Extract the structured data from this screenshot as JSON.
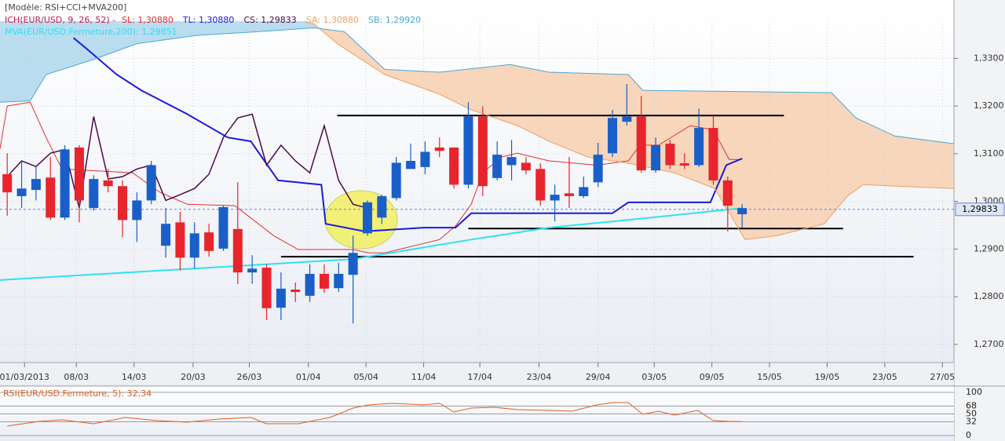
{
  "chart_data": [
    {
      "type": "candlestick",
      "title": "[Modèle: RSI+CCI+MVA200]",
      "indicator": "ICH(EUR/USD, 9, 26, 52) -",
      "up_color": "#1a5fc8",
      "down_color": "#e8242c",
      "x": [
        0,
        1,
        2,
        3,
        4,
        5,
        6,
        7,
        8,
        9,
        10,
        11,
        12,
        13,
        14,
        15,
        16,
        17,
        18,
        19,
        20,
        21,
        22,
        23,
        24,
        25,
        26,
        27,
        28,
        29,
        30,
        31,
        32,
        33,
        34,
        35,
        36,
        37,
        38,
        39,
        40,
        41,
        42,
        43,
        44,
        45,
        46,
        47,
        48,
        49,
        50,
        51
      ],
      "open": [
        1.3057,
        1.3011,
        1.3024,
        1.305,
        1.2966,
        1.3113,
        1.2986,
        1.3044,
        1.3032,
        1.2961,
        1.3002,
        1.2907,
        1.2956,
        1.2882,
        1.2935,
        1.2901,
        1.2942,
        1.2851,
        1.2861,
        1.2777,
        1.2815,
        1.2802,
        1.2848,
        1.2818,
        1.2846,
        1.2933,
        1.2966,
        1.3007,
        1.3068,
        1.3072,
        1.3113,
        1.3113,
        1.3035,
        1.3178,
        1.3049,
        1.3076,
        1.3081,
        1.3068,
        1.3002,
        1.3017,
        1.3011,
        1.304,
        1.3101,
        1.3167,
        1.3178,
        1.3065,
        1.3121,
        1.308,
        1.3076,
        1.3154,
        1.3044,
        1.2973
      ],
      "high": [
        1.3101,
        1.3085,
        1.3073,
        1.3093,
        1.3118,
        1.3118,
        1.3055,
        1.3068,
        1.3044,
        1.3019,
        1.3085,
        1.2986,
        1.2978,
        1.2956,
        1.2953,
        1.2991,
        1.304,
        1.2887,
        1.2868,
        1.2851,
        1.283,
        1.2868,
        1.2868,
        1.2871,
        1.2928,
        1.3002,
        1.3014,
        1.3093,
        1.3121,
        1.3126,
        1.3134,
        1.3113,
        1.3208,
        1.32,
        1.3126,
        1.3129,
        1.3093,
        1.308,
        1.3035,
        1.3093,
        1.3052,
        1.3123,
        1.3192,
        1.3246,
        1.3221,
        1.3134,
        1.3129,
        1.3101,
        1.3195,
        1.3178,
        1.3052,
        1.2994
      ],
      "low": [
        1.297,
        1.2986,
        1.3002,
        1.2961,
        1.2961,
        1.2956,
        1.2981,
        1.3019,
        1.2925,
        1.2915,
        1.2994,
        1.2882,
        1.2855,
        1.2859,
        1.2884,
        1.2896,
        1.2827,
        1.2827,
        1.2751,
        1.2751,
        1.2789,
        1.2789,
        1.2808,
        1.281,
        1.2744,
        1.2928,
        1.2953,
        1.3002,
        1.3068,
        1.3057,
        1.3093,
        1.3027,
        1.3027,
        1.3011,
        1.3044,
        1.3044,
        1.3057,
        1.2991,
        1.2958,
        1.2986,
        1.3007,
        1.303,
        1.3093,
        1.3159,
        1.306,
        1.306,
        1.3068,
        1.3068,
        1.3072,
        1.3035,
        1.2937,
        1.2945
      ],
      "close": [
        1.3019,
        1.3027,
        1.3047,
        1.2966,
        1.3109,
        1.3002,
        1.3047,
        1.3032,
        1.2961,
        1.3002,
        1.3076,
        1.2953,
        1.2882,
        1.2933,
        1.2896,
        1.2988,
        1.2851,
        1.2859,
        1.2776,
        1.2817,
        1.281,
        1.2848,
        1.2817,
        1.2848,
        1.2892,
        1.2998,
        1.3011,
        1.3081,
        1.3085,
        1.3104,
        1.3106,
        1.3035,
        1.3178,
        1.3032,
        1.3098,
        1.3093,
        1.3065,
        1.3002,
        1.3014,
        1.3011,
        1.303,
        1.3098,
        1.3175,
        1.3178,
        1.3065,
        1.3118,
        1.3076,
        1.3075,
        1.3154,
        1.3044,
        1.2991,
        1.2986
      ],
      "series": [
        {
          "name": "SL: 1,30880",
          "color": "#e03030",
          "line_width": 1,
          "x": [
            -0.5,
            0,
            1.6,
            2.7,
            3.8,
            8.7,
            10.6,
            12.5,
            15.8,
            18.5,
            20.2,
            24.0,
            25.1,
            26.2,
            30.0,
            31.1,
            32.2,
            33.0,
            34.3,
            35.4,
            37.6,
            40.9,
            43.1,
            43.9,
            45.2,
            47.4,
            49.0,
            50.1,
            51.0
          ],
          "values": [
            1.311,
            1.32,
            1.3208,
            1.3134,
            1.3068,
            1.306,
            1.3019,
            1.2994,
            1.2991,
            1.2928,
            1.2899,
            1.2899,
            1.2892,
            1.2892,
            1.292,
            1.2948,
            1.2994,
            1.306,
            1.3093,
            1.3101,
            1.3085,
            1.3076,
            1.3085,
            1.3118,
            1.3118,
            1.3159,
            1.315,
            1.3088,
            1.3088
          ]
        },
        {
          "name": "TL: 1,30880",
          "color": "#1a1adc",
          "line_width": 2,
          "x": [
            4.6,
            5.4,
            7.6,
            9.3,
            12.5,
            15.3,
            16.9,
            18.8,
            21.8,
            22.1,
            24.8,
            28.9,
            31.1,
            32.2,
            42.0,
            43.1,
            48.8,
            49.9,
            51.0
          ],
          "values": [
            1.3343,
            1.3323,
            1.3266,
            1.3233,
            1.3183,
            1.3134,
            1.3126,
            1.3044,
            1.3035,
            1.2953,
            1.2937,
            1.2945,
            1.2945,
            1.2975,
            1.2975,
            1.2998,
            1.2998,
            1.3076,
            1.309
          ]
        },
        {
          "name": "CS: 1,29833",
          "color": "#4a0a4a",
          "line_width": 1.5,
          "x": [
            0,
            1,
            2,
            3,
            4,
            5,
            6,
            7,
            8,
            9,
            10,
            11,
            12,
            13,
            14,
            15,
            16,
            17,
            18,
            19,
            20,
            21,
            22,
            23,
            24,
            25
          ],
          "values": [
            1.3052,
            1.3085,
            1.3073,
            1.3101,
            1.3109,
            1.2986,
            1.3178,
            1.3047,
            1.3052,
            1.3068,
            1.3076,
            1.3002,
            1.3014,
            1.3027,
            1.3057,
            1.3134,
            1.3175,
            1.3183,
            1.3076,
            1.3118,
            1.3085,
            1.306,
            1.3159,
            1.3044,
            1.2994,
            1.2986
          ]
        },
        {
          "name": "SA: 1,30880",
          "color": "#f0a060",
          "fill": "#f7d6bb",
          "line_width": 1,
          "x": [
            -0.5,
            9.0,
            15.8,
            21.3,
            22.9,
            26.2,
            30.0,
            32.2,
            35.4,
            37.6,
            40.3,
            43.1,
            46.3,
            49.1,
            50.4,
            51.2,
            53.4,
            56.7,
            58.3,
            59.4,
            65.7
          ],
          "values": [
            1.3414,
            1.3422,
            1.3422,
            1.3372,
            1.3331,
            1.3266,
            1.3225,
            1.3192,
            1.3159,
            1.3126,
            1.3093,
            1.308,
            1.306,
            1.3027,
            1.2961,
            1.292,
            1.2928,
            1.2953,
            1.3011,
            1.3035,
            1.3027
          ]
        },
        {
          "name": "SB: 1,29920",
          "color": "#4aa8d8",
          "fill": "#b9dcef",
          "line_width": 1,
          "x": [
            -0.5,
            1.6,
            2.7,
            6.0,
            9.0,
            13.1,
            17.4,
            21.3,
            23.4,
            26.2,
            30.0,
            34.9,
            37.6,
            43.1,
            44.1,
            57.2,
            58.9,
            61.6,
            65.7
          ],
          "values": [
            1.3208,
            1.3211,
            1.3266,
            1.3298,
            1.3331,
            1.3348,
            1.3356,
            1.3364,
            1.3356,
            1.3277,
            1.3271,
            1.3287,
            1.3271,
            1.3266,
            1.3233,
            1.3228,
            1.3175,
            1.3137,
            1.3121
          ]
        },
        {
          "name": "MVA(EUR/USD.Fermeture,200): 1,29851",
          "color": "#30e0f0",
          "line_width": 2,
          "x": [
            -0.5,
            24.0,
            32.2,
            37.6,
            43.1,
            51.0
          ],
          "values": [
            1.2835,
            1.2879,
            1.292,
            1.2945,
            1.2961,
            1.2986
          ]
        }
      ],
      "lines": [
        {
          "color": "#000000",
          "x": [
            22.9,
            53.9
          ],
          "values": [
            1.318,
            1.318
          ]
        },
        {
          "color": "#000000",
          "x": [
            32.0,
            58.0
          ],
          "values": [
            1.2943,
            1.2943
          ]
        },
        {
          "color": "#000000",
          "x": [
            19.0,
            62.9
          ],
          "values": [
            1.2884,
            1.2884
          ]
        }
      ],
      "last_price": {
        "value": 1.29833,
        "label": "1,29833"
      },
      "xlim": [
        -0.5,
        65.7
      ],
      "ylim": [
        1.2662,
        1.3378
      ],
      "xticks": [
        {
          "value": 1.2,
          "label": "01/03/2013"
        },
        {
          "value": 4.8,
          "label": "08/03"
        },
        {
          "value": 8.8,
          "label": "14/03"
        },
        {
          "value": 12.9,
          "label": "20/03"
        },
        {
          "value": 16.8,
          "label": "26/03"
        },
        {
          "value": 20.9,
          "label": "01/04"
        },
        {
          "value": 24.9,
          "label": "05/04"
        },
        {
          "value": 28.9,
          "label": "11/04"
        },
        {
          "value": 32.8,
          "label": "17/04"
        },
        {
          "value": 36.9,
          "label": "23/04"
        },
        {
          "value": 41.0,
          "label": "29/04"
        },
        {
          "value": 44.9,
          "label": "03/05"
        },
        {
          "value": 48.9,
          "label": "09/05"
        },
        {
          "value": 52.9,
          "label": "15/05"
        },
        {
          "value": 56.9,
          "label": "19/05"
        },
        {
          "value": 60.9,
          "label": "23/05"
        },
        {
          "value": 64.9,
          "label": "27/05"
        }
      ],
      "yticks": [
        {
          "value": 1.27,
          "label": "1,2700"
        },
        {
          "value": 1.28,
          "label": "1,2800"
        },
        {
          "value": 1.29,
          "label": "1,2900"
        },
        {
          "value": 1.3,
          "label": "1,3000"
        },
        {
          "value": 1.31,
          "label": "1,3100"
        },
        {
          "value": 1.32,
          "label": "1,3200"
        },
        {
          "value": 1.33,
          "label": "1,3300"
        }
      ],
      "grid": true
    },
    {
      "type": "line",
      "series": [
        {
          "name": "RSI(EUR/USD.Fermeture, 5): 32,34",
          "color": "#e06020",
          "line_width": 1,
          "x": [
            0,
            2.2,
            3.8,
            6.0,
            8.2,
            10.4,
            12.5,
            14.7,
            16.9,
            18.0,
            20.2,
            22.4,
            24.0,
            25.1,
            26.7,
            28.9,
            30.0,
            31.0,
            32.2,
            33.8,
            35.4,
            37.6,
            39.2,
            40.9,
            42.0,
            43.1,
            44.1,
            45.2,
            46.3,
            47.9,
            49.0,
            50.1,
            51.0
          ],
          "values": [
            21.8,
            32.7,
            36.4,
            27.3,
            41.8,
            34.5,
            30.9,
            38.2,
            41.8,
            27.3,
            27.3,
            41.8,
            63.6,
            70.9,
            74.5,
            70.9,
            74.5,
            54.5,
            63.6,
            65.5,
            60,
            58.2,
            56.4,
            70.9,
            76.4,
            76.4,
            49.1,
            56.4,
            47.3,
            58.2,
            34.5,
            32.7,
            32.3
          ]
        }
      ],
      "xlim": [
        -0.5,
        65.7
      ],
      "ylim": [
        0,
        100
      ],
      "yticks": [
        100,
        68,
        50,
        32,
        0
      ],
      "grid": true
    }
  ]
}
